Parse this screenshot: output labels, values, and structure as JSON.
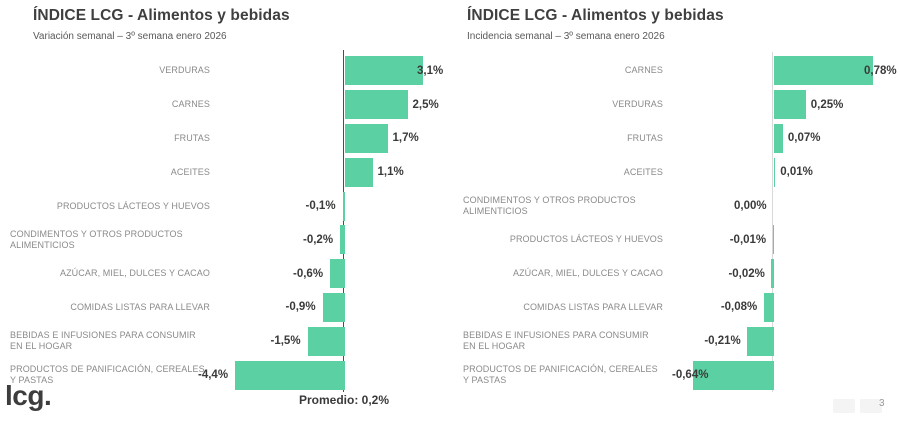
{
  "colors": {
    "bar": "#5BD1A3",
    "title_text": "#3F3F3F",
    "subtitle_text": "#595959",
    "category_text": "#8A8A8A",
    "value_text": "#3A3A3A"
  },
  "chart_data": [
    {
      "type": "bar",
      "orientation": "horizontal",
      "title": "ÍNDICE LCG - Alimentos y bebidas",
      "subtitle": "Variación semanal – 3º semana enero 2026",
      "unit": "%",
      "categories": [
        "VERDURAS",
        "CARNES",
        "FRUTAS",
        "ACEITES",
        "PRODUCTOS LÁCTEOS Y HUEVOS",
        "CONDIMENTOS Y OTROS PRODUCTOS ALIMENTICIOS",
        "AZÚCAR, MIEL, DULCES Y CACAO",
        "COMIDAS LISTAS PARA LLEVAR",
        "BEBIDAS E INFUSIONES PARA CONSUMIR EN EL HOGAR",
        "PRODUCTOS DE PANIFICACIÓN, CEREALES Y PASTAS"
      ],
      "values": [
        3.1,
        2.5,
        1.7,
        1.1,
        -0.1,
        -0.2,
        -0.6,
        -0.9,
        -1.5,
        -4.4
      ],
      "value_labels": [
        "3,1%",
        "2,5%",
        "1,7%",
        "1,1%",
        "-0,1%",
        "-0,2%",
        "-0,6%",
        "-0,9%",
        "-1,5%",
        "-4,4%"
      ],
      "annotation": "Promedio: 0,2%",
      "xlim": [
        -5,
        4
      ],
      "grid": false,
      "legend": false,
      "baseline": "zero-axis vertical line"
    },
    {
      "type": "bar",
      "orientation": "horizontal",
      "title": "ÍNDICE LCG - Alimentos y bebidas",
      "subtitle": "Incidencia semanal – 3º semana enero 2026",
      "unit": "%",
      "categories": [
        "CARNES",
        "VERDURAS",
        "FRUTAS",
        "ACEITES",
        "CONDIMENTOS Y OTROS PRODUCTOS ALIMENTICIOS",
        "PRODUCTOS LÁCTEOS Y HUEVOS",
        "AZÚCAR, MIEL, DULCES Y CACAO",
        "COMIDAS LISTAS PARA LLEVAR",
        "BEBIDAS E INFUSIONES PARA CONSUMIR EN EL HOGAR",
        "PRODUCTOS DE PANIFICACIÓN, CEREALES Y PASTAS"
      ],
      "values": [
        0.78,
        0.25,
        0.07,
        0.01,
        0.0,
        -0.01,
        -0.02,
        -0.08,
        -0.21,
        -0.64
      ],
      "value_labels": [
        "0,78%",
        "0,25%",
        "0,07%",
        "0,01%",
        "0,00%",
        "-0,01%",
        "-0,02%",
        "-0,08%",
        "-0,21%",
        "-0,64%"
      ],
      "annotation": "",
      "xlim": [
        -0.8,
        1.0
      ],
      "grid": false,
      "legend": false,
      "baseline": "zero-axis vertical line"
    }
  ],
  "footer": {
    "logo_text": "lcg.",
    "page_number": "3"
  }
}
